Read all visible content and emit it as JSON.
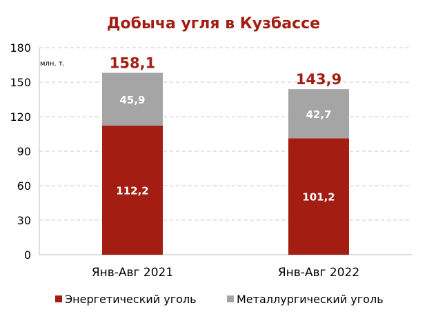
{
  "chart_data": {
    "type": "bar",
    "stacked": true,
    "title": "Добыча угля в Кузбассе",
    "unit_label": "млн. т.",
    "categories": [
      "Янв-Авг 2021",
      "Янв-Авг 2022"
    ],
    "series": [
      {
        "name": "Энергетический уголь",
        "values": [
          112.2,
          101.2
        ],
        "labels": [
          "112,2",
          "101,2"
        ],
        "color": "#A31D12"
      },
      {
        "name": "Металлургический уголь",
        "values": [
          45.9,
          42.7
        ],
        "labels": [
          "45,9",
          "42,7"
        ],
        "color": "#A5A5A5"
      }
    ],
    "totals": [
      158.1,
      143.9
    ],
    "total_labels": [
      "158,1",
      "143,9"
    ],
    "y_ticks": [
      "0",
      "30",
      "60",
      "90",
      "120",
      "150",
      "180"
    ],
    "ylim": [
      0,
      180
    ],
    "grid": true,
    "legend_position": "bottom",
    "title_color": "#A31D12"
  }
}
